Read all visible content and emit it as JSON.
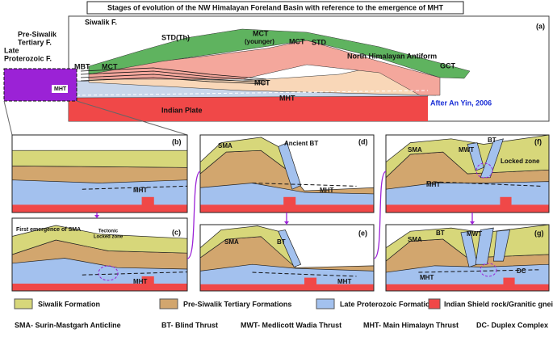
{
  "title": "Stages of evolution of the NW Himalayan Foreland Basin with reference to the emergence of MHT",
  "panel_a": {
    "id": "(a)",
    "labels": [
      "Siwalik F.",
      "Pre-Siwalik",
      "Tertiary F.",
      "Late",
      "Proterozoic F.",
      "MBT",
      "MCT",
      "MHT",
      "STD(Th)",
      "MCT",
      "(younger)",
      "MCT",
      "STD",
      "North Himalayan Antiform",
      "GCT",
      "MCT",
      "MHT",
      "Indian Plate",
      "After An Yin, 2006"
    ]
  },
  "panels": [
    {
      "id": "(b)",
      "labels": [
        "MHT"
      ]
    },
    {
      "id": "(c)",
      "labels": [
        "First emergence of SMA",
        "Tectonic",
        "Locked zone",
        "MHT"
      ]
    },
    {
      "id": "(d)",
      "labels": [
        "SMA",
        "Ancient BT",
        "MHT"
      ]
    },
    {
      "id": "(e)",
      "labels": [
        "SMA",
        "BT",
        "MHT"
      ]
    },
    {
      "id": "(f)",
      "labels": [
        "SMA",
        "MWT",
        "BT",
        "Locked zone",
        "MHT"
      ]
    },
    {
      "id": "(g)",
      "labels": [
        "SMA",
        "BT",
        "MWT",
        "MHT",
        "DC"
      ]
    }
  ],
  "legend": [
    "Siwalik Formation",
    "Pre-Siwalik Tertiary Formations",
    "Late Proterozoic Formation",
    "Indian Shield rock/Granitic gneiss"
  ],
  "abbreviations": [
    "SMA- Surin-Mastgarh Anticline",
    "BT- Blind Thrust",
    "MWT- Medlicott Wadia Thrust",
    "MHT- Main Himalayn Thrust",
    "DC- Duplex Complex"
  ]
}
